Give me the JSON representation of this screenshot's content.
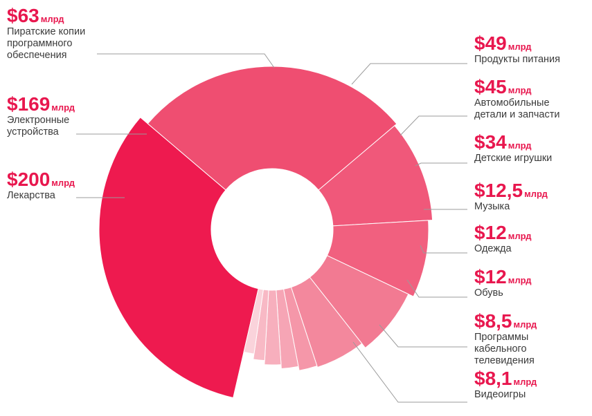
{
  "chart_data": {
    "type": "pie",
    "subtype": "donut",
    "title": "",
    "unit": "млрд",
    "slices": [
      {
        "value_label": "$200",
        "value": 200,
        "label": "Лекарства",
        "color": "#ee1a4f"
      },
      {
        "value_label": "$169",
        "value": 169,
        "label": "Электронные устройства",
        "color": "#ef4e71"
      },
      {
        "value_label": "$63",
        "value": 63,
        "label": "Пиратские копии программного обеспечения",
        "color": "#f0587a"
      },
      {
        "value_label": "$49",
        "value": 49,
        "label": "Продукты питания",
        "color": "#f1607f"
      },
      {
        "value_label": "$45",
        "value": 45,
        "label": "Автомобильные детали и запчасти",
        "color": "#f27a92"
      },
      {
        "value_label": "$34",
        "value": 34,
        "label": "Детские игрушки",
        "color": "#f3889d"
      },
      {
        "value_label": "$12,5",
        "value": 12.5,
        "label": "Музыка",
        "color": "#f597a9"
      },
      {
        "value_label": "$12",
        "value": 12,
        "label": "Одежда",
        "color": "#f6a5b5"
      },
      {
        "value_label": "$12",
        "value": 12,
        "label": "Обувь",
        "color": "#f7afbd"
      },
      {
        "value_label": "$8,5",
        "value": 8.5,
        "label": "Программы кабельного телевидения",
        "color": "#f8b9c5"
      },
      {
        "value_label": "$8,1",
        "value": 8.1,
        "label": "Видеоигры",
        "color": "#fad3db"
      }
    ],
    "label_color": "#e8174e",
    "leader_color": "#9b9b9b"
  }
}
